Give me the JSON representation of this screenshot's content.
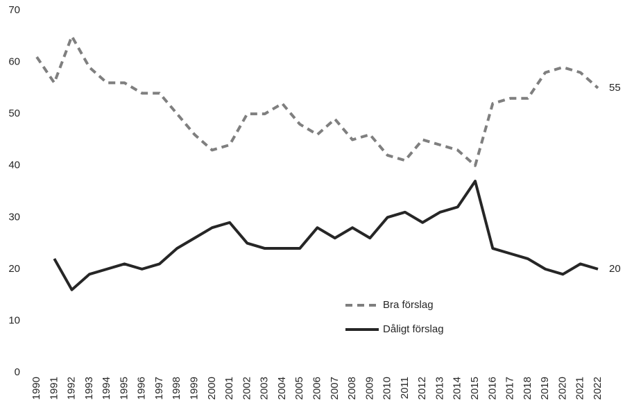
{
  "chart_data": {
    "type": "line",
    "x": [
      1990,
      1991,
      1992,
      1993,
      1994,
      1995,
      1996,
      1997,
      1998,
      1999,
      2000,
      2001,
      2002,
      2003,
      2004,
      2005,
      2006,
      2007,
      2008,
      2009,
      2010,
      2011,
      2012,
      2013,
      2014,
      2015,
      2016,
      2017,
      2018,
      2019,
      2020,
      2021,
      2022
    ],
    "xlim": [
      1990,
      2022
    ],
    "ylim": [
      0,
      70
    ],
    "yticks": [
      0,
      10,
      20,
      30,
      40,
      50,
      60,
      70
    ],
    "grid": false,
    "series": [
      {
        "name": "Bra förslag",
        "color": "#7f7f7f",
        "dash": "dashed",
        "values": [
          61,
          56,
          65,
          59,
          56,
          56,
          54,
          54,
          50,
          46,
          43,
          44,
          50,
          50,
          52,
          48,
          46,
          49,
          45,
          46,
          42,
          41,
          45,
          44,
          43,
          40,
          52,
          53,
          53,
          58,
          59,
          58,
          55
        ]
      },
      {
        "name": "Dåligt förslag",
        "color": "#262626",
        "dash": "solid",
        "values": [
          null,
          22,
          16,
          19,
          20,
          21,
          20,
          21,
          24,
          26,
          28,
          29,
          25,
          24,
          24,
          24,
          28,
          26,
          28,
          26,
          30,
          31,
          29,
          31,
          32,
          37,
          24,
          23,
          22,
          20,
          19,
          21,
          20
        ]
      }
    ]
  }
}
